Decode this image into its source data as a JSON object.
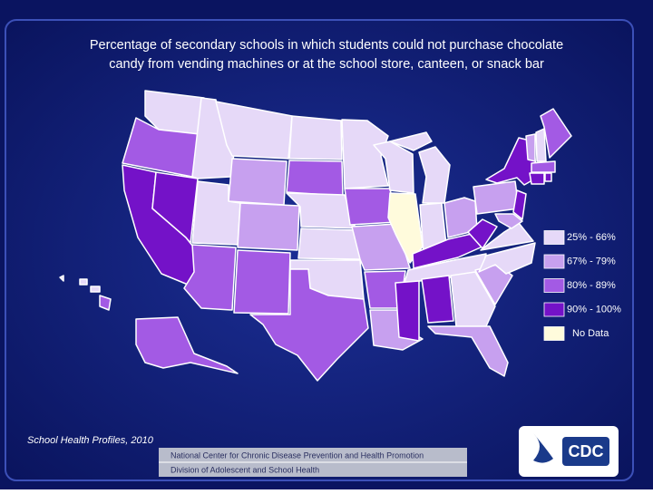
{
  "title_lines": [
    "Percentage of secondary schools in which students could not purchase chocolate",
    "candy from vending machines or at the school store, canteen, or snack bar"
  ],
  "legend": [
    {
      "label": "25% - 66%",
      "color": "#e6d9f8"
    },
    {
      "label": "67% - 79%",
      "color": "#c7a0ef"
    },
    {
      "label": "80% - 89%",
      "color": "#a35ae4"
    },
    {
      "label": "90% - 100%",
      "color": "#7412c8"
    },
    {
      "label": "No Data",
      "color": "#fffbdc"
    }
  ],
  "source": "School Health Profiles, 2010",
  "footer": [
    "National Center for Chronic Disease Prevention and Health Promotion",
    "Division of Adolescent and School Health"
  ],
  "logo": "CDC"
}
